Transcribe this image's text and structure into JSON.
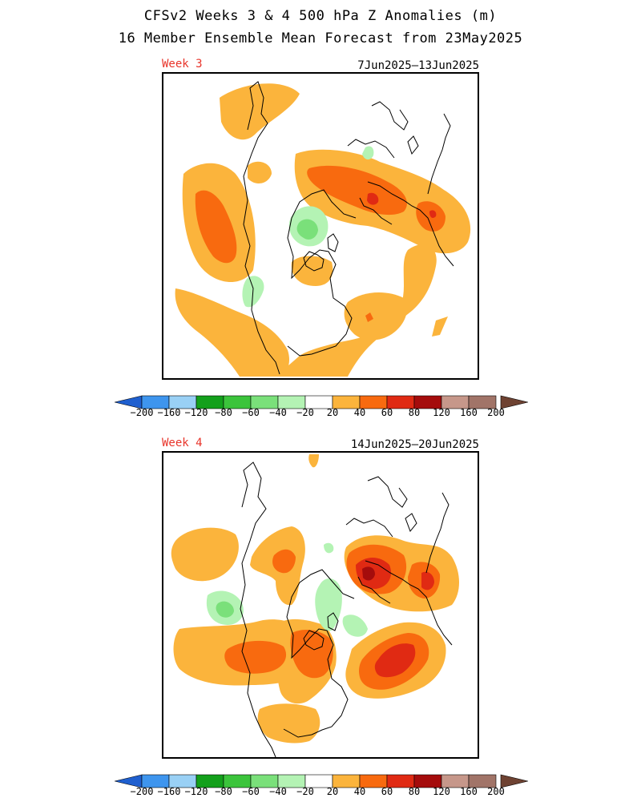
{
  "title_line1": "CFSv2 Weeks 3 & 4 500 hPa Z Anomalies (m)",
  "title_line2": "16 Member Ensemble Mean Forecast from 23May2025",
  "panels": [
    {
      "week_label": "Week 3",
      "date_range": "7Jun2025–13Jun2025"
    },
    {
      "week_label": "Week 4",
      "date_range": "14Jun2025–20Jun2025"
    }
  ],
  "colorbar": {
    "labels": [
      "−200",
      "−160",
      "−120",
      "−80",
      "−60",
      "−40",
      "−20",
      "20",
      "40",
      "60",
      "80",
      "120",
      "160",
      "200"
    ],
    "colors": [
      "#1f5fcf",
      "#3e95ee",
      "#99d0f5",
      "#13a01b",
      "#3bc43b",
      "#7ae07a",
      "#b4f3b4",
      "#ffffff",
      "#fbb43c",
      "#f86a0f",
      "#e02a13",
      "#a50c0c",
      "#c6978a",
      "#a17468",
      "#6e4232"
    ]
  }
}
